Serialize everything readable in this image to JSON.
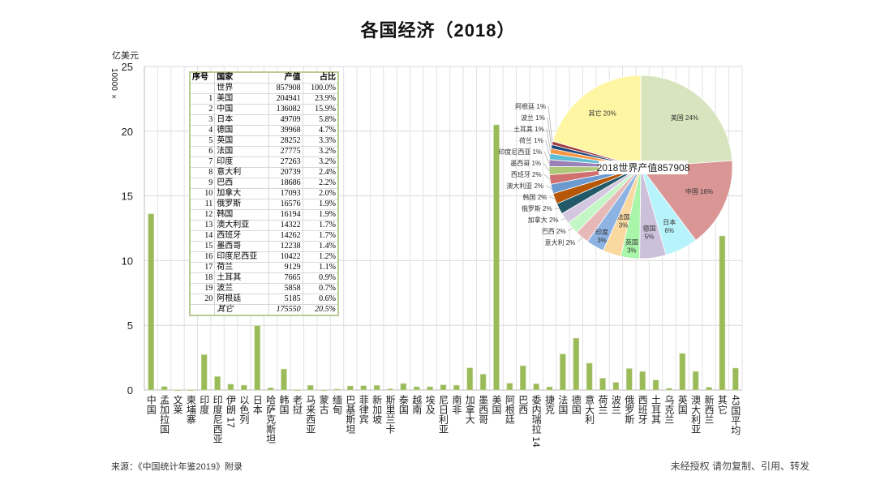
{
  "title": "各国经济（2018）",
  "y_unit": "亿美元",
  "y_multiplier": "10000 ×",
  "footer": {
    "source": "来源：《中国统计年鉴2019》附录",
    "notice": "未经授权 请勿复制、引用、转发"
  },
  "colors": {
    "bar": "#9bbb59",
    "grid": "#d9d9d9",
    "table_border": "#b8cc94"
  },
  "chart_data": [
    {
      "type": "bar",
      "title": "各国经济（2018）",
      "ylabel": "亿美元 (×10000)",
      "ylim": [
        0,
        25
      ],
      "yticks": [
        0,
        5,
        10,
        15,
        20,
        25
      ],
      "grid": true,
      "categories": [
        "中国",
        "孟加拉国",
        "文莱",
        "柬埔寨",
        "印度",
        "印度尼西亚",
        "伊朗 17",
        "以色列",
        "日本",
        "哈萨克斯坦",
        "韩国",
        "老挝",
        "马来西亚",
        "蒙古",
        "缅甸",
        "巴基斯坦",
        "菲律宾",
        "新加坡",
        "斯里兰卡",
        "泰国",
        "越南",
        "埃及",
        "尼日利亚",
        "南非",
        "加拿大",
        "墨西哥",
        "美国",
        "阿根廷",
        "巴西",
        "委内瑞拉 14",
        "捷克",
        "法国",
        "德国",
        "意大利",
        "荷兰",
        "波兰",
        "俄罗斯",
        "西班牙",
        "土耳其",
        "乌克兰",
        "英国",
        "澳大利亚",
        "新西兰",
        "其它",
        "43国平均"
      ],
      "values": [
        13.61,
        0.27,
        0.01,
        0.02,
        2.73,
        1.04,
        0.45,
        0.37,
        4.97,
        0.17,
        1.62,
        0.02,
        0.36,
        0.01,
        0.07,
        0.31,
        0.33,
        0.36,
        0.09,
        0.5,
        0.25,
        0.25,
        0.4,
        0.37,
        1.71,
        1.22,
        20.49,
        0.52,
        1.87,
        0.48,
        0.24,
        2.78,
        4.0,
        2.07,
        0.91,
        0.59,
        1.66,
        1.43,
        0.77,
        0.13,
        2.83,
        1.43,
        0.21,
        11.9,
        1.69
      ]
    },
    {
      "type": "table",
      "headers": [
        "序号",
        "国家",
        "产值",
        "占比"
      ],
      "rows": [
        [
          "",
          "世界",
          "857908",
          "100.0%"
        ],
        [
          "1",
          "美国",
          "204941",
          "23.9%"
        ],
        [
          "2",
          "中国",
          "136082",
          "15.9%"
        ],
        [
          "3",
          "日本",
          "49709",
          "5.8%"
        ],
        [
          "4",
          "德国",
          "39968",
          "4.7%"
        ],
        [
          "5",
          "英国",
          "28252",
          "3.3%"
        ],
        [
          "6",
          "法国",
          "27775",
          "3.2%"
        ],
        [
          "7",
          "印度",
          "27263",
          "3.2%"
        ],
        [
          "8",
          "意大利",
          "20739",
          "2.4%"
        ],
        [
          "9",
          "巴西",
          "18686",
          "2.2%"
        ],
        [
          "10",
          "加拿大",
          "17093",
          "2.0%"
        ],
        [
          "11",
          "俄罗斯",
          "16576",
          "1.9%"
        ],
        [
          "12",
          "韩国",
          "16194",
          "1.9%"
        ],
        [
          "13",
          "澳大利亚",
          "14322",
          "1.7%"
        ],
        [
          "14",
          "西班牙",
          "14262",
          "1.7%"
        ],
        [
          "15",
          "墨西哥",
          "12238",
          "1.4%"
        ],
        [
          "16",
          "印度尼西亚",
          "10422",
          "1.2%"
        ],
        [
          "17",
          "荷兰",
          "9129",
          "1.1%"
        ],
        [
          "18",
          "土耳其",
          "7665",
          "0.9%"
        ],
        [
          "19",
          "波兰",
          "5858",
          "0.7%"
        ],
        [
          "20",
          "阿根廷",
          "5185",
          "0.6%"
        ],
        [
          "",
          "其它",
          "175550",
          "20.5%"
        ]
      ]
    },
    {
      "type": "pie",
      "center_label": "2018世界产值857908",
      "slices": [
        {
          "label": "美国",
          "value": 204941,
          "pct": "24%",
          "color": "#d7e4bd"
        },
        {
          "label": "中国",
          "value": 136082,
          "pct": "16%",
          "color": "#d99694"
        },
        {
          "label": "日本",
          "value": 49709,
          "pct": "6%",
          "color": "#b7f3fb"
        },
        {
          "label": "德国",
          "value": 39968,
          "pct": "5%",
          "color": "#ccc0da"
        },
        {
          "label": "英国",
          "value": 28252,
          "pct": "3%",
          "color": "#a9f5a9"
        },
        {
          "label": "法国",
          "value": 27775,
          "pct": "3%",
          "color": "#fad9a1"
        },
        {
          "label": "印度",
          "value": 27263,
          "pct": "3%",
          "color": "#8db3e2"
        },
        {
          "label": "意大利",
          "value": 20739,
          "pct": "2%",
          "color": "#e6b9b8"
        },
        {
          "label": "巴西",
          "value": 18686,
          "pct": "2%",
          "color": "#c4f5c4"
        },
        {
          "label": "加拿大",
          "value": 17093,
          "pct": "2%",
          "color": "#d3c8e0"
        },
        {
          "label": "俄罗斯",
          "value": 16576,
          "pct": "2%",
          "color": "#215968"
        },
        {
          "label": "韩国",
          "value": 16194,
          "pct": "2%",
          "color": "#b65708"
        },
        {
          "label": "澳大利亚",
          "value": 14322,
          "pct": "2%",
          "color": "#6a9ad0"
        },
        {
          "label": "西班牙",
          "value": 14262,
          "pct": "2%",
          "color": "#d07070"
        },
        {
          "label": "墨西哥",
          "value": 12238,
          "pct": "1%",
          "color": "#acc878"
        },
        {
          "label": "印度尼西亚",
          "value": 10422,
          "pct": "1%",
          "color": "#9a82b8"
        },
        {
          "label": "荷兰",
          "value": 9129,
          "pct": "1%",
          "color": "#5fbcd3"
        },
        {
          "label": "土耳其",
          "value": 7665,
          "pct": "1%",
          "color": "#f79646"
        },
        {
          "label": "波兰",
          "value": 5858,
          "pct": "1%",
          "color": "#1f497d"
        },
        {
          "label": "阿根廷",
          "value": 5185,
          "pct": "1%",
          "color": "#a33a3a"
        },
        {
          "label": "其它",
          "value": 175550,
          "pct": "20%",
          "color": "#fff6a3"
        }
      ]
    }
  ]
}
